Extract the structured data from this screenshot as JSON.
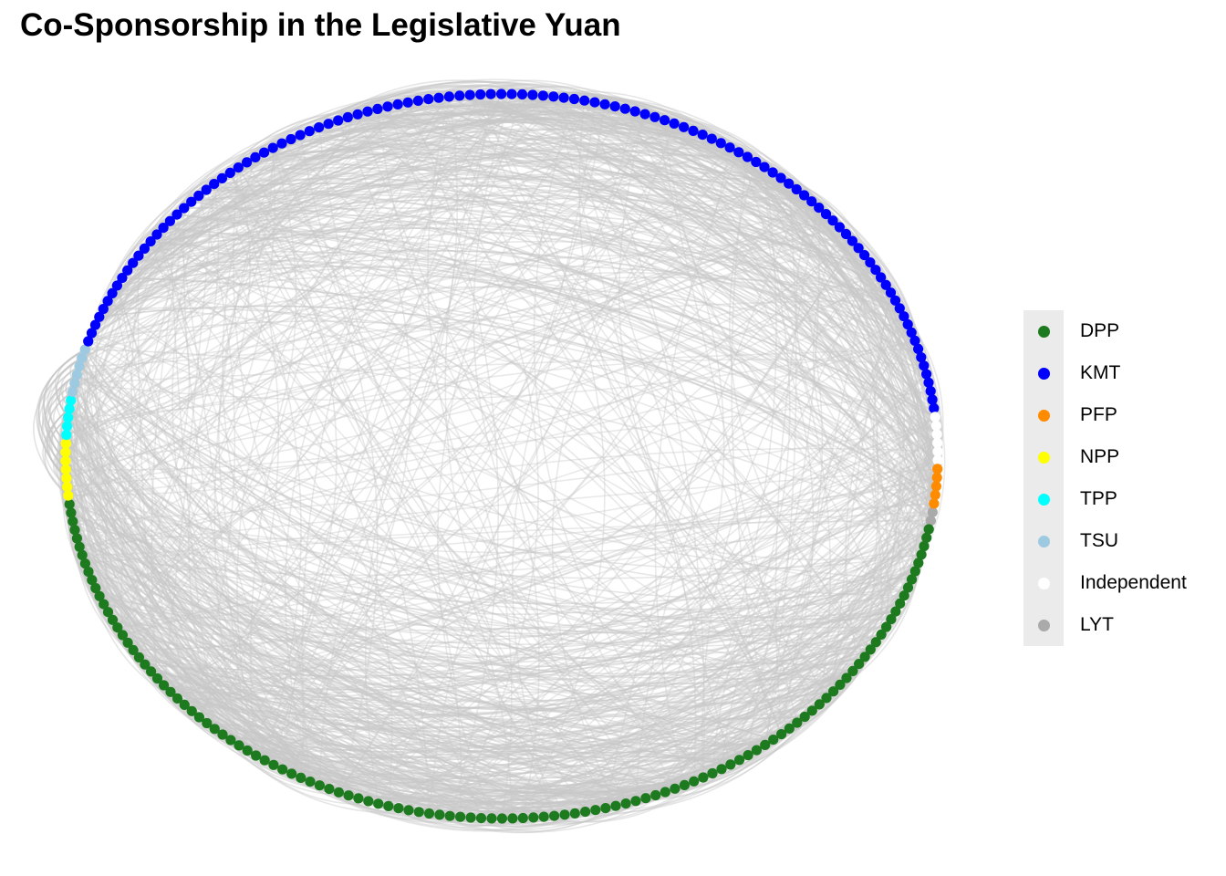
{
  "title": "Co-Sponsorship in the Legislative Yuan",
  "legend": [
    {
      "label": "DPP",
      "color": "#1e7a1e",
      "count": 118
    },
    {
      "label": "KMT",
      "color": "#0000ff",
      "count": 113
    },
    {
      "label": "PFP",
      "color": "#ff8c00",
      "count": 5
    },
    {
      "label": "NPP",
      "color": "#ffff00",
      "count": 7
    },
    {
      "label": "TPP",
      "color": "#00ffff",
      "count": 5
    },
    {
      "label": "TSU",
      "color": "#9ecae1",
      "count": 6
    },
    {
      "label": "Independent",
      "color": "#ffffff",
      "count": 6
    },
    {
      "label": "LYT",
      "color": "#aaaaaa",
      "count": 2
    }
  ],
  "edge_color": "#c8c8c8"
}
